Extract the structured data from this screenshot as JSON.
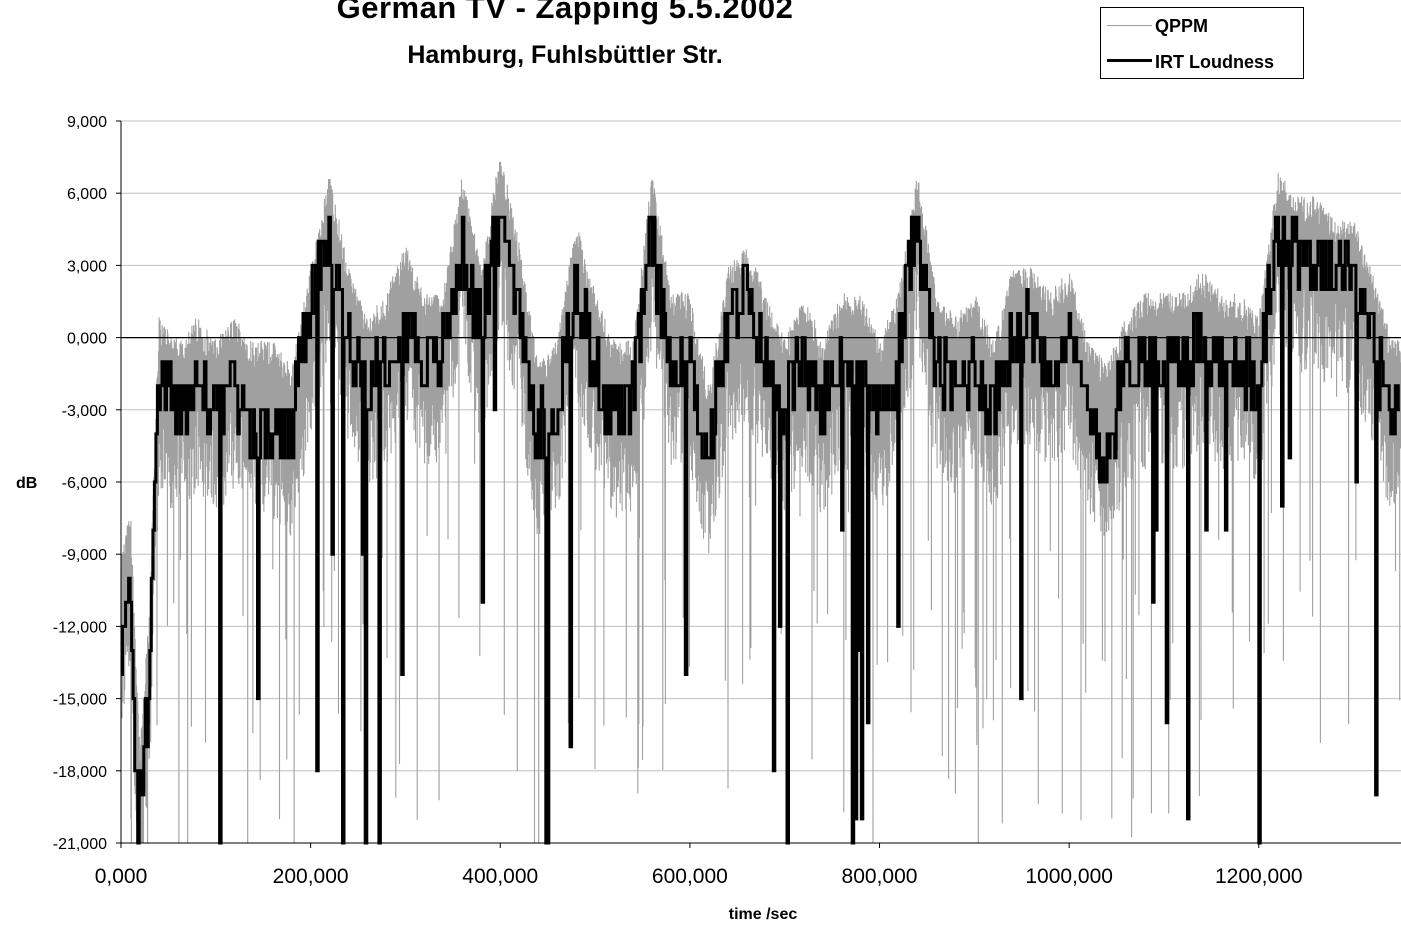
{
  "chart_data": {
    "type": "line",
    "title": "German TV - Zapping 5.5.2002",
    "subtitle": "Hamburg, Fuhlsbüttler Str.",
    "xlabel": "time /sec",
    "ylabel": "dB",
    "xlim": [
      0,
      1350
    ],
    "ylim": [
      -21,
      9
    ],
    "x_ticks": [
      0,
      200,
      400,
      600,
      800,
      1000,
      1200
    ],
    "x_tick_labels": [
      "0,000",
      "200,000",
      "400,000",
      "600,000",
      "800,000",
      "1000,000",
      "1200,000"
    ],
    "y_ticks": [
      9,
      6,
      3,
      0,
      -3,
      -6,
      -9,
      -12,
      -15,
      -18,
      -21
    ],
    "y_tick_labels": [
      "9,000",
      "6,000",
      "3,000",
      "0,000",
      "-3,000",
      "-6,000",
      "-9,000",
      "-12,000",
      "-15,000",
      "-18,000",
      "-21,000"
    ],
    "grid": true,
    "legend_position": "top-right",
    "series": [
      {
        "name": "QPPM",
        "color": "#a0a0a0",
        "description_of_envelope": "dense fluctuating signal approximately 2 to 3 dB above IRT Loudness with frequent dropouts",
        "x": [
          0,
          10,
          20,
          30,
          40,
          60,
          80,
          100,
          120,
          140,
          160,
          180,
          200,
          220,
          240,
          260,
          280,
          300,
          320,
          340,
          360,
          380,
          400,
          420,
          440,
          460,
          480,
          500,
          520,
          540,
          560,
          580,
          600,
          620,
          640,
          660,
          680,
          700,
          720,
          740,
          760,
          780,
          800,
          820,
          840,
          860,
          880,
          900,
          920,
          940,
          960,
          980,
          1000,
          1020,
          1040,
          1060,
          1080,
          1100,
          1120,
          1140,
          1160,
          1180,
          1200,
          1220,
          1240,
          1260,
          1280,
          1300,
          1320,
          1340
        ],
        "values": [
          -10,
          -8,
          -18,
          -12,
          0,
          -1,
          0,
          -1,
          0,
          -1,
          -1,
          -2,
          2,
          6,
          2,
          0,
          1,
          3,
          1,
          1,
          6,
          2,
          7,
          3,
          -2,
          -1,
          4,
          1,
          -1,
          -1,
          6,
          1,
          1,
          -3,
          2,
          3,
          1,
          -1,
          1,
          -1,
          1,
          1,
          -1,
          1,
          6,
          1,
          0,
          1,
          -1,
          2,
          2,
          1,
          2,
          -1,
          -2,
          0,
          1,
          1,
          1,
          2,
          1,
          1,
          0,
          6,
          5,
          5,
          4,
          4,
          2,
          -1
        ]
      },
      {
        "name": "IRT Loudness",
        "color": "#000000",
        "x": [
          0,
          10,
          20,
          30,
          40,
          60,
          80,
          100,
          120,
          140,
          160,
          180,
          200,
          220,
          240,
          260,
          280,
          300,
          320,
          340,
          360,
          380,
          400,
          420,
          440,
          460,
          480,
          500,
          520,
          540,
          560,
          580,
          600,
          620,
          640,
          660,
          680,
          700,
          720,
          740,
          760,
          780,
          800,
          820,
          840,
          860,
          880,
          900,
          920,
          940,
          960,
          980,
          1000,
          1020,
          1040,
          1060,
          1080,
          1100,
          1120,
          1140,
          1160,
          1180,
          1200,
          1220,
          1240,
          1260,
          1280,
          1300,
          1320,
          1340
        ],
        "values": [
          -13,
          -11,
          -20,
          -15,
          -2,
          -3,
          -2,
          -3,
          -2,
          -4,
          -4,
          -4,
          1,
          4,
          0,
          -2,
          -1,
          1,
          -1,
          -1,
          4,
          0,
          5,
          2,
          -4,
          -3,
          2,
          -1,
          -3,
          -3,
          4,
          -1,
          -1,
          -5,
          0,
          2,
          -1,
          -3,
          -1,
          -3,
          -1,
          -1,
          -3,
          -1,
          5,
          -1,
          -2,
          -1,
          -3,
          0,
          1,
          -1,
          0,
          -3,
          -5,
          -1,
          -1,
          -1,
          -1,
          0,
          -1,
          -1,
          -2,
          4,
          4,
          3,
          3,
          3,
          0,
          -3
        ]
      }
    ]
  }
}
